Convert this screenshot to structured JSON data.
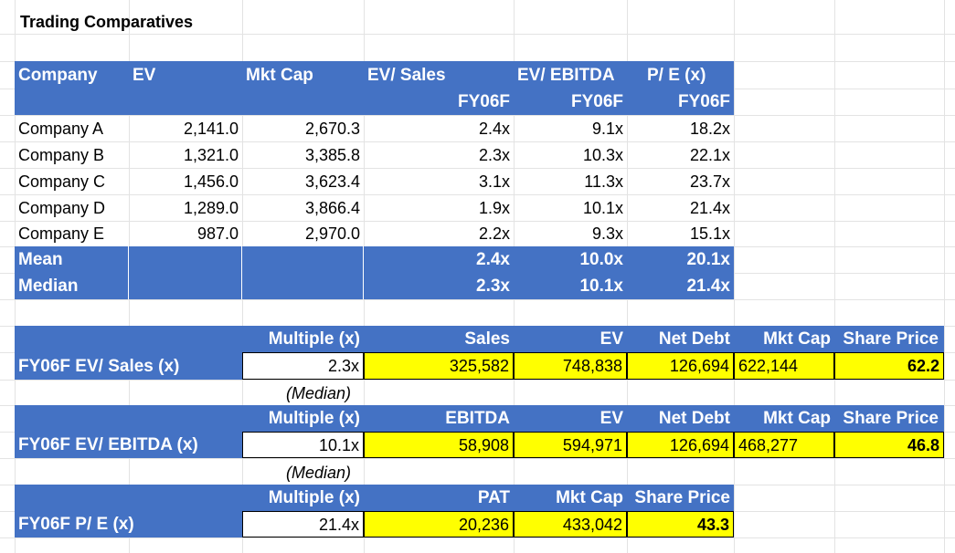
{
  "title": "Trading Comparatives",
  "table": {
    "headers": {
      "company": "Company",
      "ev": "EV",
      "mkt_cap": "Mkt Cap",
      "ev_sales": "EV/ Sales",
      "ev_ebitda": "EV/ EBITDA",
      "pe": "P/ E (x)",
      "fy": "FY06F"
    },
    "rows": [
      {
        "company": "Company A",
        "ev": "2,141.0",
        "mkt_cap": "2,670.3",
        "ev_sales": "2.4x",
        "ev_ebitda": "9.1x",
        "pe": "18.2x"
      },
      {
        "company": "Company B",
        "ev": "1,321.0",
        "mkt_cap": "3,385.8",
        "ev_sales": "2.3x",
        "ev_ebitda": "10.3x",
        "pe": "22.1x"
      },
      {
        "company": "Company C",
        "ev": "1,456.0",
        "mkt_cap": "3,623.4",
        "ev_sales": "3.1x",
        "ev_ebitda": "11.3x",
        "pe": "23.7x"
      },
      {
        "company": "Company D",
        "ev": "1,289.0",
        "mkt_cap": "3,866.4",
        "ev_sales": "1.9x",
        "ev_ebitda": "10.1x",
        "pe": "21.4x"
      },
      {
        "company": "Company E",
        "ev": "987.0",
        "mkt_cap": "2,970.0",
        "ev_sales": "2.2x",
        "ev_ebitda": "9.3x",
        "pe": "15.1x"
      }
    ],
    "mean": {
      "label": "Mean",
      "ev_sales": "2.4x",
      "ev_ebitda": "10.0x",
      "pe": "20.1x"
    },
    "median": {
      "label": "Median",
      "ev_sales": "2.3x",
      "ev_ebitda": "10.1x",
      "pe": "21.4x"
    }
  },
  "valuations": {
    "ev_sales": {
      "label": "FY06F EV/ Sales (x)",
      "multiple_header": "Multiple (x)",
      "metric_header": "Sales",
      "ev_header": "EV",
      "net_debt_header": "Net Debt",
      "mkt_cap_header": "Mkt Cap",
      "share_price_header": "Share Price",
      "multiple": "2.3x",
      "metric": "325,582",
      "ev": "748,838",
      "net_debt": "126,694",
      "mkt_cap": "622,144",
      "share_price": "62.2",
      "note": "(Median)"
    },
    "ev_ebitda": {
      "label": "FY06F EV/ EBITDA (x)",
      "multiple_header": "Multiple (x)",
      "metric_header": "EBITDA",
      "ev_header": "EV",
      "net_debt_header": "Net Debt",
      "mkt_cap_header": "Mkt Cap",
      "share_price_header": "Share Price",
      "multiple": "10.1x",
      "metric": "58,908",
      "ev": "594,971",
      "net_debt": "126,694",
      "mkt_cap": "468,277",
      "share_price": "46.8",
      "note": "(Median)"
    },
    "pe": {
      "label": "FY06F P/ E (x)",
      "multiple_header": "Multiple (x)",
      "metric_header": "PAT",
      "mkt_cap_header": "Mkt Cap",
      "share_price_header": "Share Price",
      "multiple": "21.4x",
      "metric": "20,236",
      "mkt_cap": "433,042",
      "share_price": "43.3"
    }
  },
  "colors": {
    "header_blue": "#4472c4",
    "highlight_yellow": "#ffff00"
  }
}
